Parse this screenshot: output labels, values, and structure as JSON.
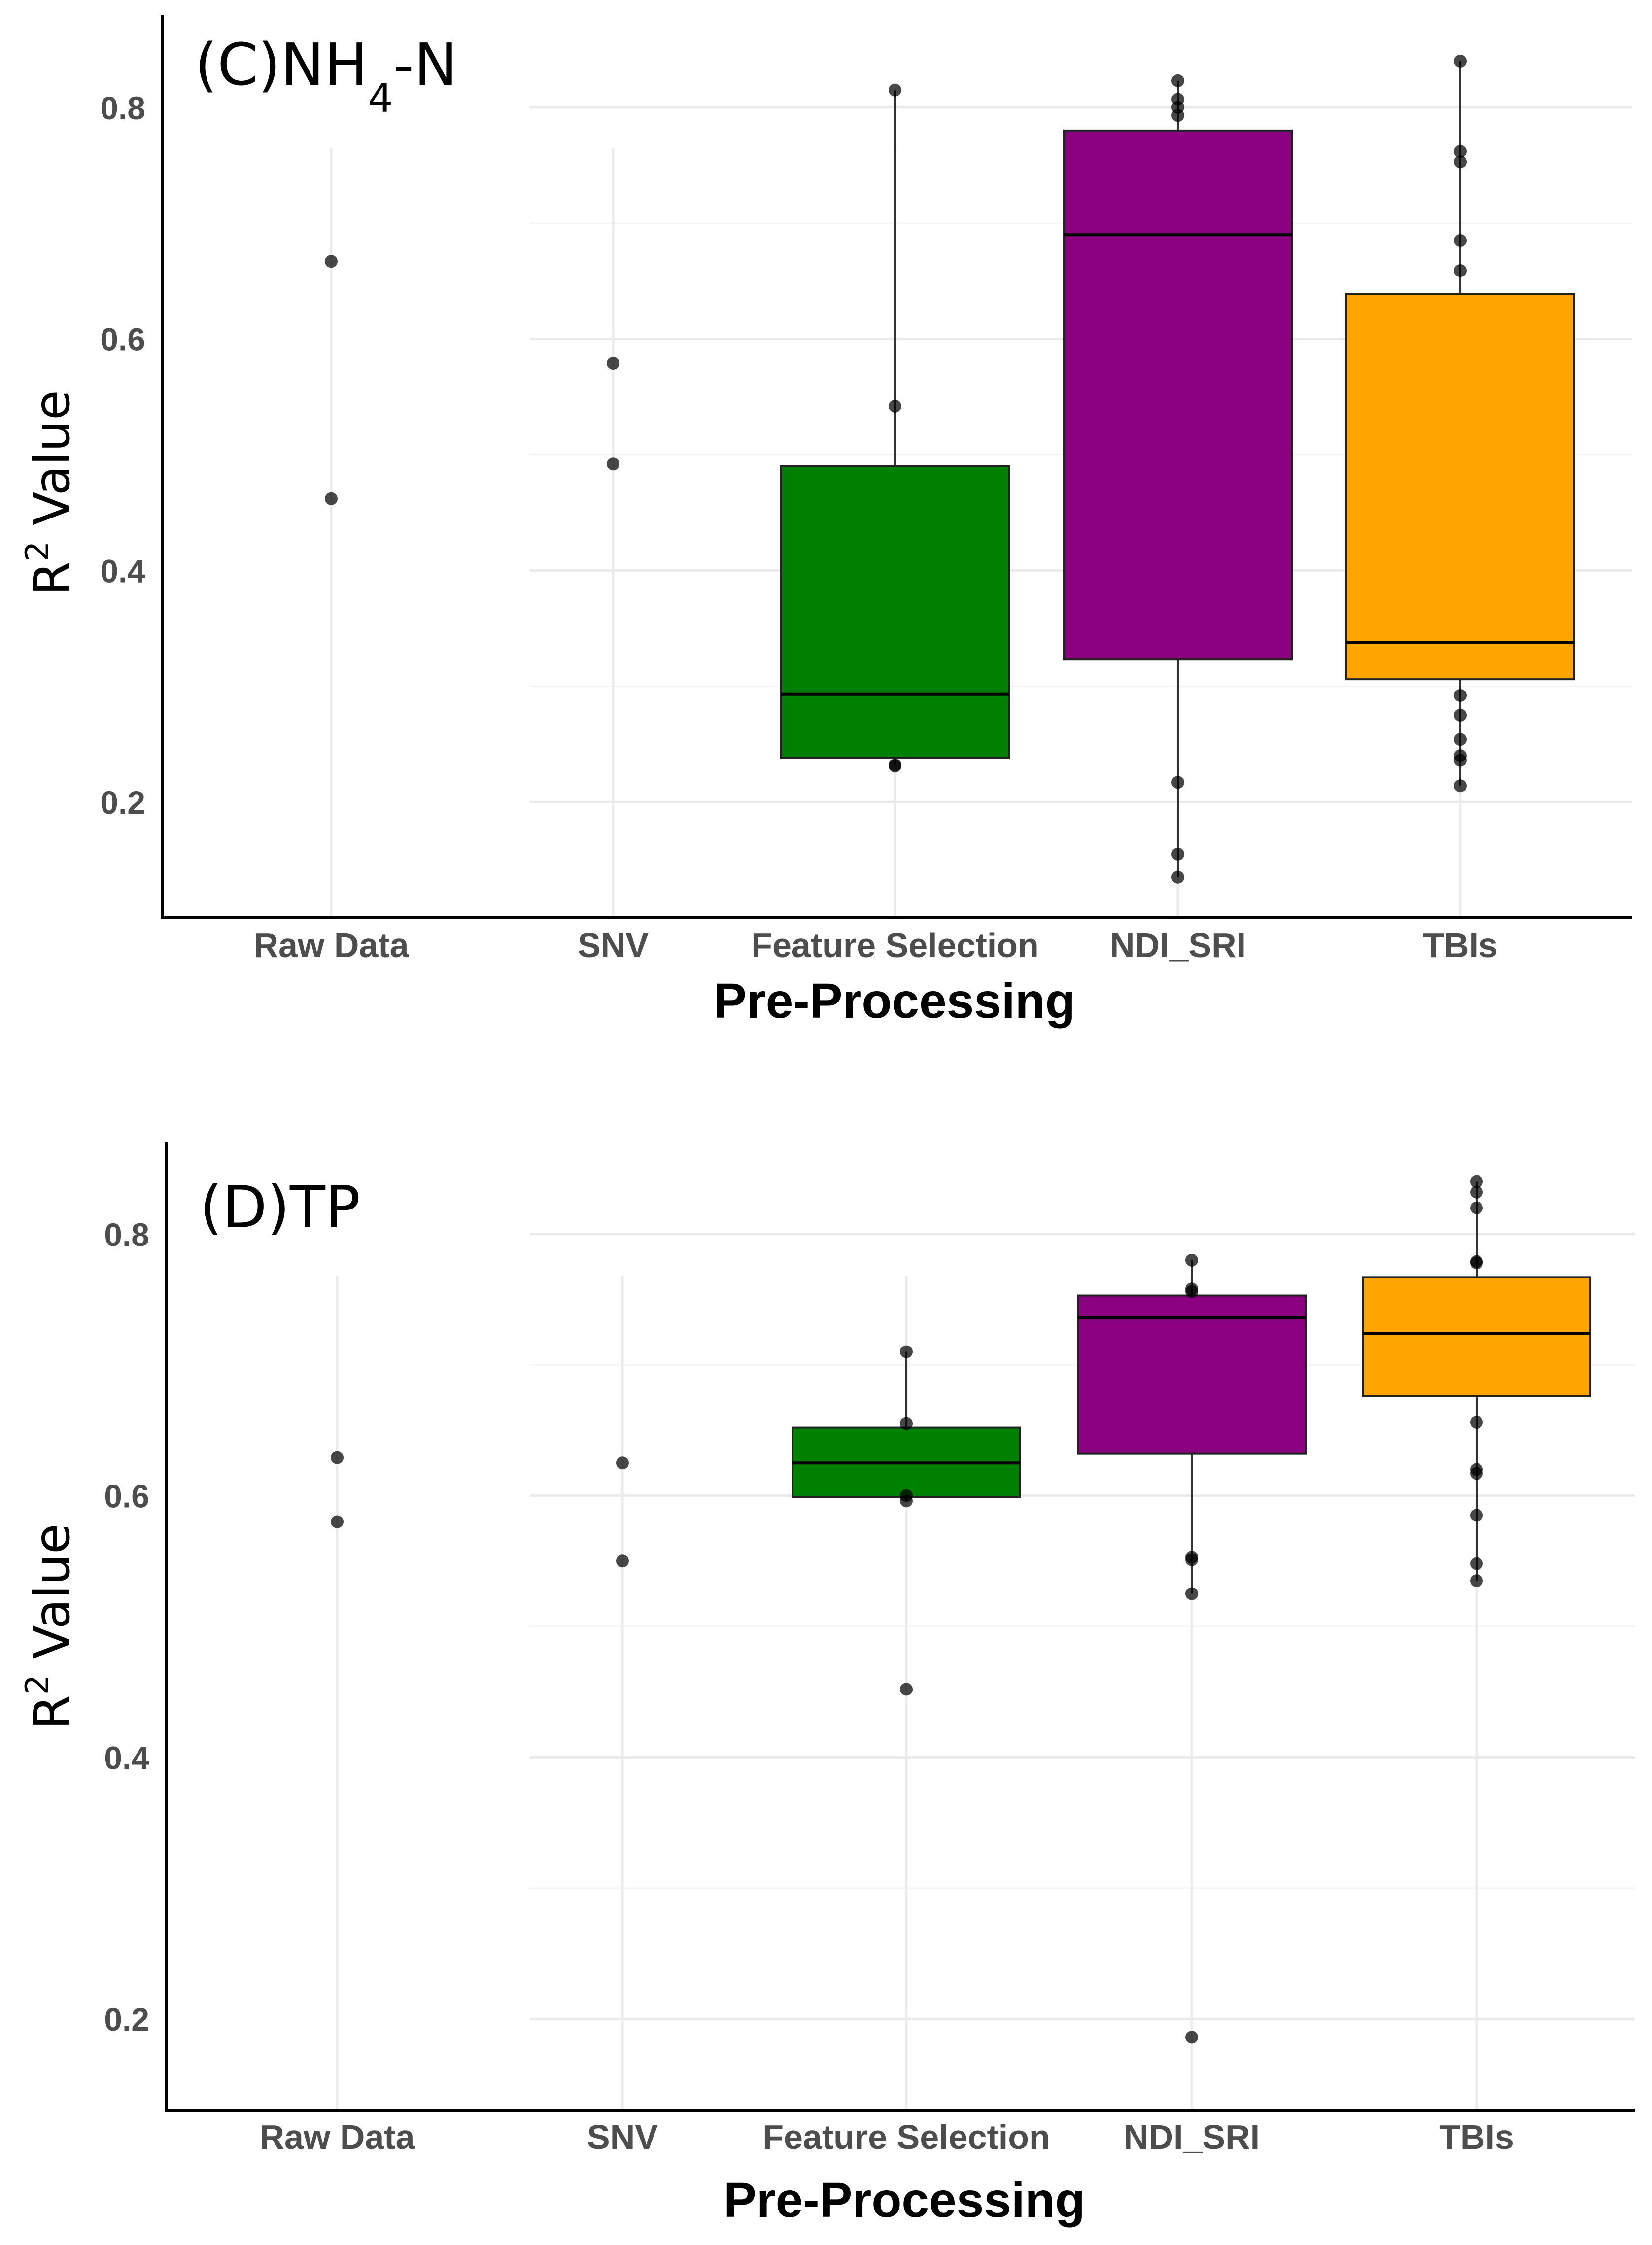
{
  "chart_data": [
    {
      "type": "boxplot",
      "panel_label": "(C)NH",
      "panel_label_subscript": "4",
      "panel_label_suffix": "-N",
      "title": "(C)NH4-N",
      "xlabel": "Pre-Processing",
      "ylabel_main": "R",
      "ylabel_sup": "2",
      "ylabel_rest": " Value",
      "ylabel": "R2 Value",
      "ylim": [
        0.1,
        0.88
      ],
      "yticks": [
        0.2,
        0.4,
        0.6,
        0.8
      ],
      "ytick_labels": [
        "0.2",
        "0.4",
        "0.6",
        "0.8"
      ],
      "grid": true,
      "categories": [
        "Raw Data",
        "SNV",
        "Feature Selection",
        "NDI_SRI",
        "TBIs"
      ],
      "boxes": [
        {
          "category": "Raw Data",
          "box": null,
          "points": [
            0.667,
            0.462
          ]
        },
        {
          "category": "SNV",
          "box": null,
          "points": [
            0.579,
            0.492
          ]
        },
        {
          "category": "Feature Selection",
          "color": "#008000",
          "box": {
            "whisker_low": 0.232,
            "q1": 0.238,
            "median": 0.293,
            "q3": 0.49,
            "whisker_high": 0.815
          },
          "points": [
            0.815,
            0.542,
            0.232,
            0.231
          ]
        },
        {
          "category": "NDI_SRI",
          "color": "#8B007F",
          "box": {
            "whisker_low": 0.135,
            "q1": 0.323,
            "median": 0.69,
            "q3": 0.78,
            "whisker_high": 0.823
          },
          "points": [
            0.823,
            0.807,
            0.8,
            0.793,
            0.217,
            0.155,
            0.135
          ]
        },
        {
          "category": "TBIs",
          "color": "#FFA500",
          "box": {
            "whisker_low": 0.214,
            "q1": 0.306,
            "median": 0.338,
            "q3": 0.639,
            "whisker_high": 0.84
          },
          "points": [
            0.84,
            0.762,
            0.753,
            0.685,
            0.659,
            0.292,
            0.275,
            0.254,
            0.24,
            0.236,
            0.214
          ]
        }
      ]
    },
    {
      "type": "boxplot",
      "panel_label": "(D)TP",
      "title": "(D)TP",
      "xlabel": "Pre-Processing",
      "ylabel_main": "R",
      "ylabel_sup": "2",
      "ylabel_rest": " Value",
      "ylabel": "R2 Value",
      "ylim": [
        0.13,
        0.87
      ],
      "yticks": [
        0.2,
        0.4,
        0.6,
        0.8
      ],
      "ytick_labels": [
        "0.2",
        "0.4",
        "0.6",
        "0.8"
      ],
      "grid": true,
      "categories": [
        "Raw Data",
        "SNV",
        "Feature Selection",
        "NDI_SRI",
        "TBIs"
      ],
      "boxes": [
        {
          "category": "Raw Data",
          "box": null,
          "points": [
            0.629,
            0.58
          ]
        },
        {
          "category": "SNV",
          "box": null,
          "points": [
            0.625,
            0.55
          ]
        },
        {
          "category": "Feature Selection",
          "color": "#008000",
          "box": {
            "whisker_low": 0.596,
            "q1": 0.599,
            "median": 0.625,
            "q3": 0.652,
            "whisker_high": 0.71
          },
          "points": [
            0.71,
            0.655,
            0.6,
            0.596,
            0.452
          ]
        },
        {
          "category": "NDI_SRI",
          "color": "#8B007F",
          "box": {
            "whisker_low": 0.525,
            "q1": 0.632,
            "median": 0.736,
            "q3": 0.753,
            "whisker_high": 0.78
          },
          "points": [
            0.78,
            0.758,
            0.756,
            0.553,
            0.551,
            0.525,
            0.186
          ]
        },
        {
          "category": "TBIs",
          "color": "#FFA500",
          "box": {
            "whisker_low": 0.535,
            "q1": 0.676,
            "median": 0.724,
            "q3": 0.767,
            "whisker_high": 0.84
          },
          "points": [
            0.84,
            0.832,
            0.82,
            0.779,
            0.778,
            0.656,
            0.62,
            0.617,
            0.585,
            0.548,
            0.535
          ]
        }
      ]
    }
  ]
}
